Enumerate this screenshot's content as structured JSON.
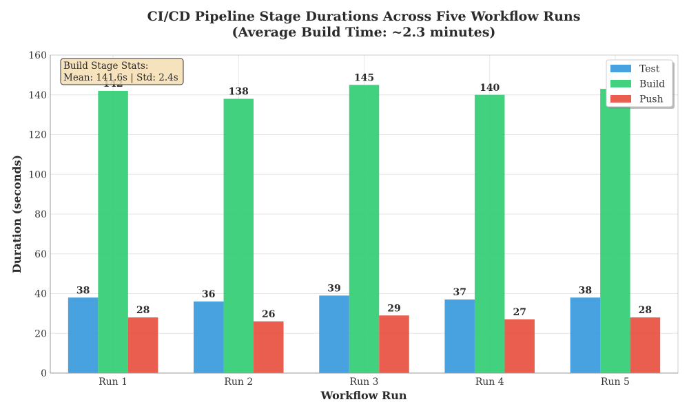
{
  "chart_data": {
    "type": "bar",
    "title": "CI/CD Pipeline Stage Durations Across Five Workflow Runs",
    "subtitle": "(Average Build Time: ~2.3 minutes)",
    "xlabel": "Workflow Run",
    "ylabel": "Duration (seconds)",
    "categories": [
      "Run 1",
      "Run 2",
      "Run 3",
      "Run 4",
      "Run 5"
    ],
    "ylim": [
      0,
      160
    ],
    "yticks": [
      0,
      20,
      40,
      60,
      80,
      100,
      120,
      140,
      160
    ],
    "grid": true,
    "legend_position": "top-right",
    "series": [
      {
        "name": "Test",
        "color": "#3498db",
        "values": [
          38,
          36,
          39,
          37,
          38
        ]
      },
      {
        "name": "Build",
        "color": "#2ecc71",
        "values": [
          142,
          138,
          145,
          140,
          143
        ]
      },
      {
        "name": "Push",
        "color": "#e74c3c",
        "values": [
          28,
          26,
          29,
          27,
          28
        ]
      }
    ],
    "annotation": {
      "lines": [
        "Build Stage Stats:",
        "Mean: 141.6s | Std: 2.4s"
      ],
      "position": "top-left",
      "background": "#f5deb3"
    }
  }
}
